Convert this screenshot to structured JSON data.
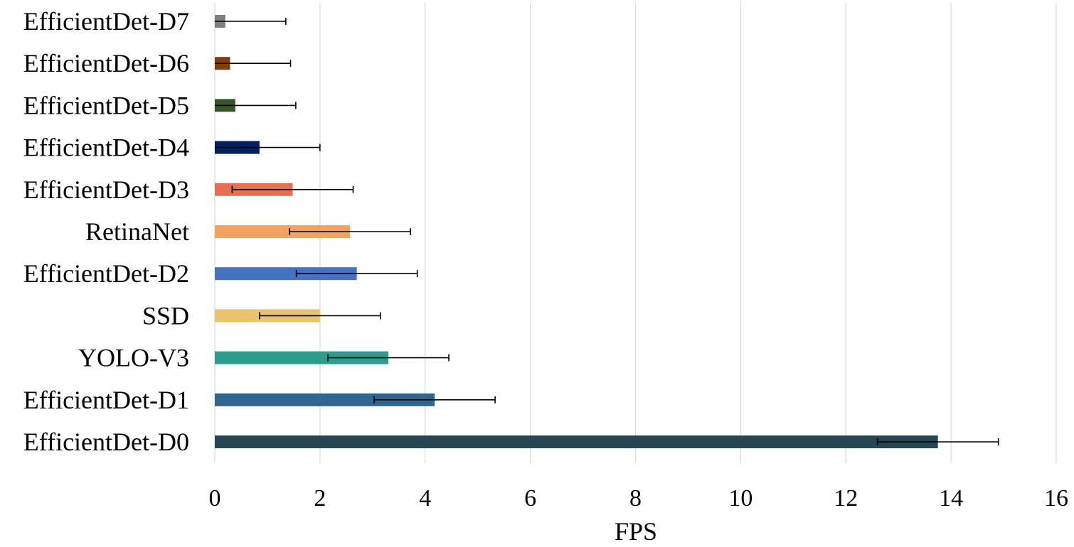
{
  "chart_data": {
    "type": "bar",
    "orientation": "horizontal",
    "title": "",
    "xlabel": "FPS",
    "ylabel": "",
    "xlim": [
      0,
      16
    ],
    "xticks": [
      0,
      2,
      4,
      6,
      8,
      10,
      12,
      14,
      16
    ],
    "grid": "vertical",
    "legend": "none",
    "categories": [
      "EfficientDet-D0",
      "EfficientDet-D1",
      "YOLO-V3",
      "SSD",
      "EfficientDet-D2",
      "RetinaNet",
      "EfficientDet-D3",
      "EfficientDet-D4",
      "EfficientDet-D5",
      "EfficientDet-D6",
      "EfficientDet-D7"
    ],
    "values": [
      13.75,
      4.18,
      3.3,
      2.0,
      2.7,
      2.57,
      1.48,
      0.85,
      0.39,
      0.29,
      0.2
    ],
    "error": [
      1.15,
      1.15,
      1.15,
      1.15,
      1.15,
      1.15,
      1.15,
      1.15,
      1.15,
      1.15,
      1.15
    ],
    "colors": [
      "#264653",
      "#2e6690",
      "#2a9d8f",
      "#e9c46a",
      "#4472c4",
      "#f4a261",
      "#e76f51",
      "#002060",
      "#375623",
      "#843c0c",
      "#7f7f7f"
    ]
  }
}
